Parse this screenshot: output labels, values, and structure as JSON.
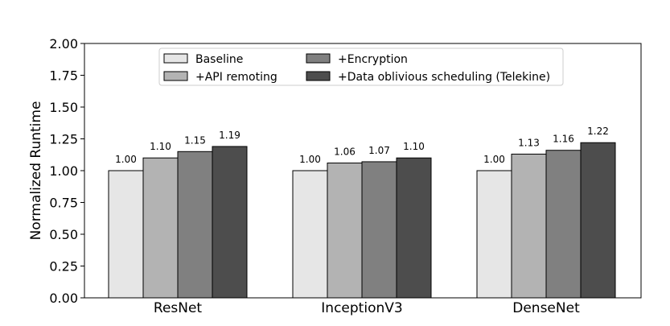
{
  "chart_data": {
    "type": "bar",
    "title": "",
    "xlabel": "",
    "ylabel": "Normalized Runtime",
    "ylim": [
      0,
      2.0
    ],
    "yticks": [
      "0.00",
      "0.25",
      "0.50",
      "0.75",
      "1.00",
      "1.25",
      "1.50",
      "1.75",
      "2.00"
    ],
    "categories": [
      "ResNet",
      "InceptionV3",
      "DenseNet"
    ],
    "series": [
      {
        "name": "Baseline",
        "color": "#e6e6e6",
        "values": [
          1.0,
          1.0,
          1.0
        ],
        "labels": [
          "1.00",
          "1.00",
          "1.00"
        ]
      },
      {
        "name": "+API remoting",
        "color": "#b3b3b3",
        "values": [
          1.1,
          1.06,
          1.13
        ],
        "labels": [
          "1.10",
          "1.06",
          "1.13"
        ]
      },
      {
        "name": "+Encryption",
        "color": "#808080",
        "values": [
          1.15,
          1.07,
          1.16
        ],
        "labels": [
          "1.15",
          "1.07",
          "1.16"
        ]
      },
      {
        "name": "+Data oblivious scheduling (Telekine)",
        "color": "#4d4d4d",
        "values": [
          1.19,
          1.1,
          1.22
        ],
        "labels": [
          "1.19",
          "1.10",
          "1.22"
        ]
      }
    ],
    "grid": false,
    "legend_position": "top-center"
  }
}
